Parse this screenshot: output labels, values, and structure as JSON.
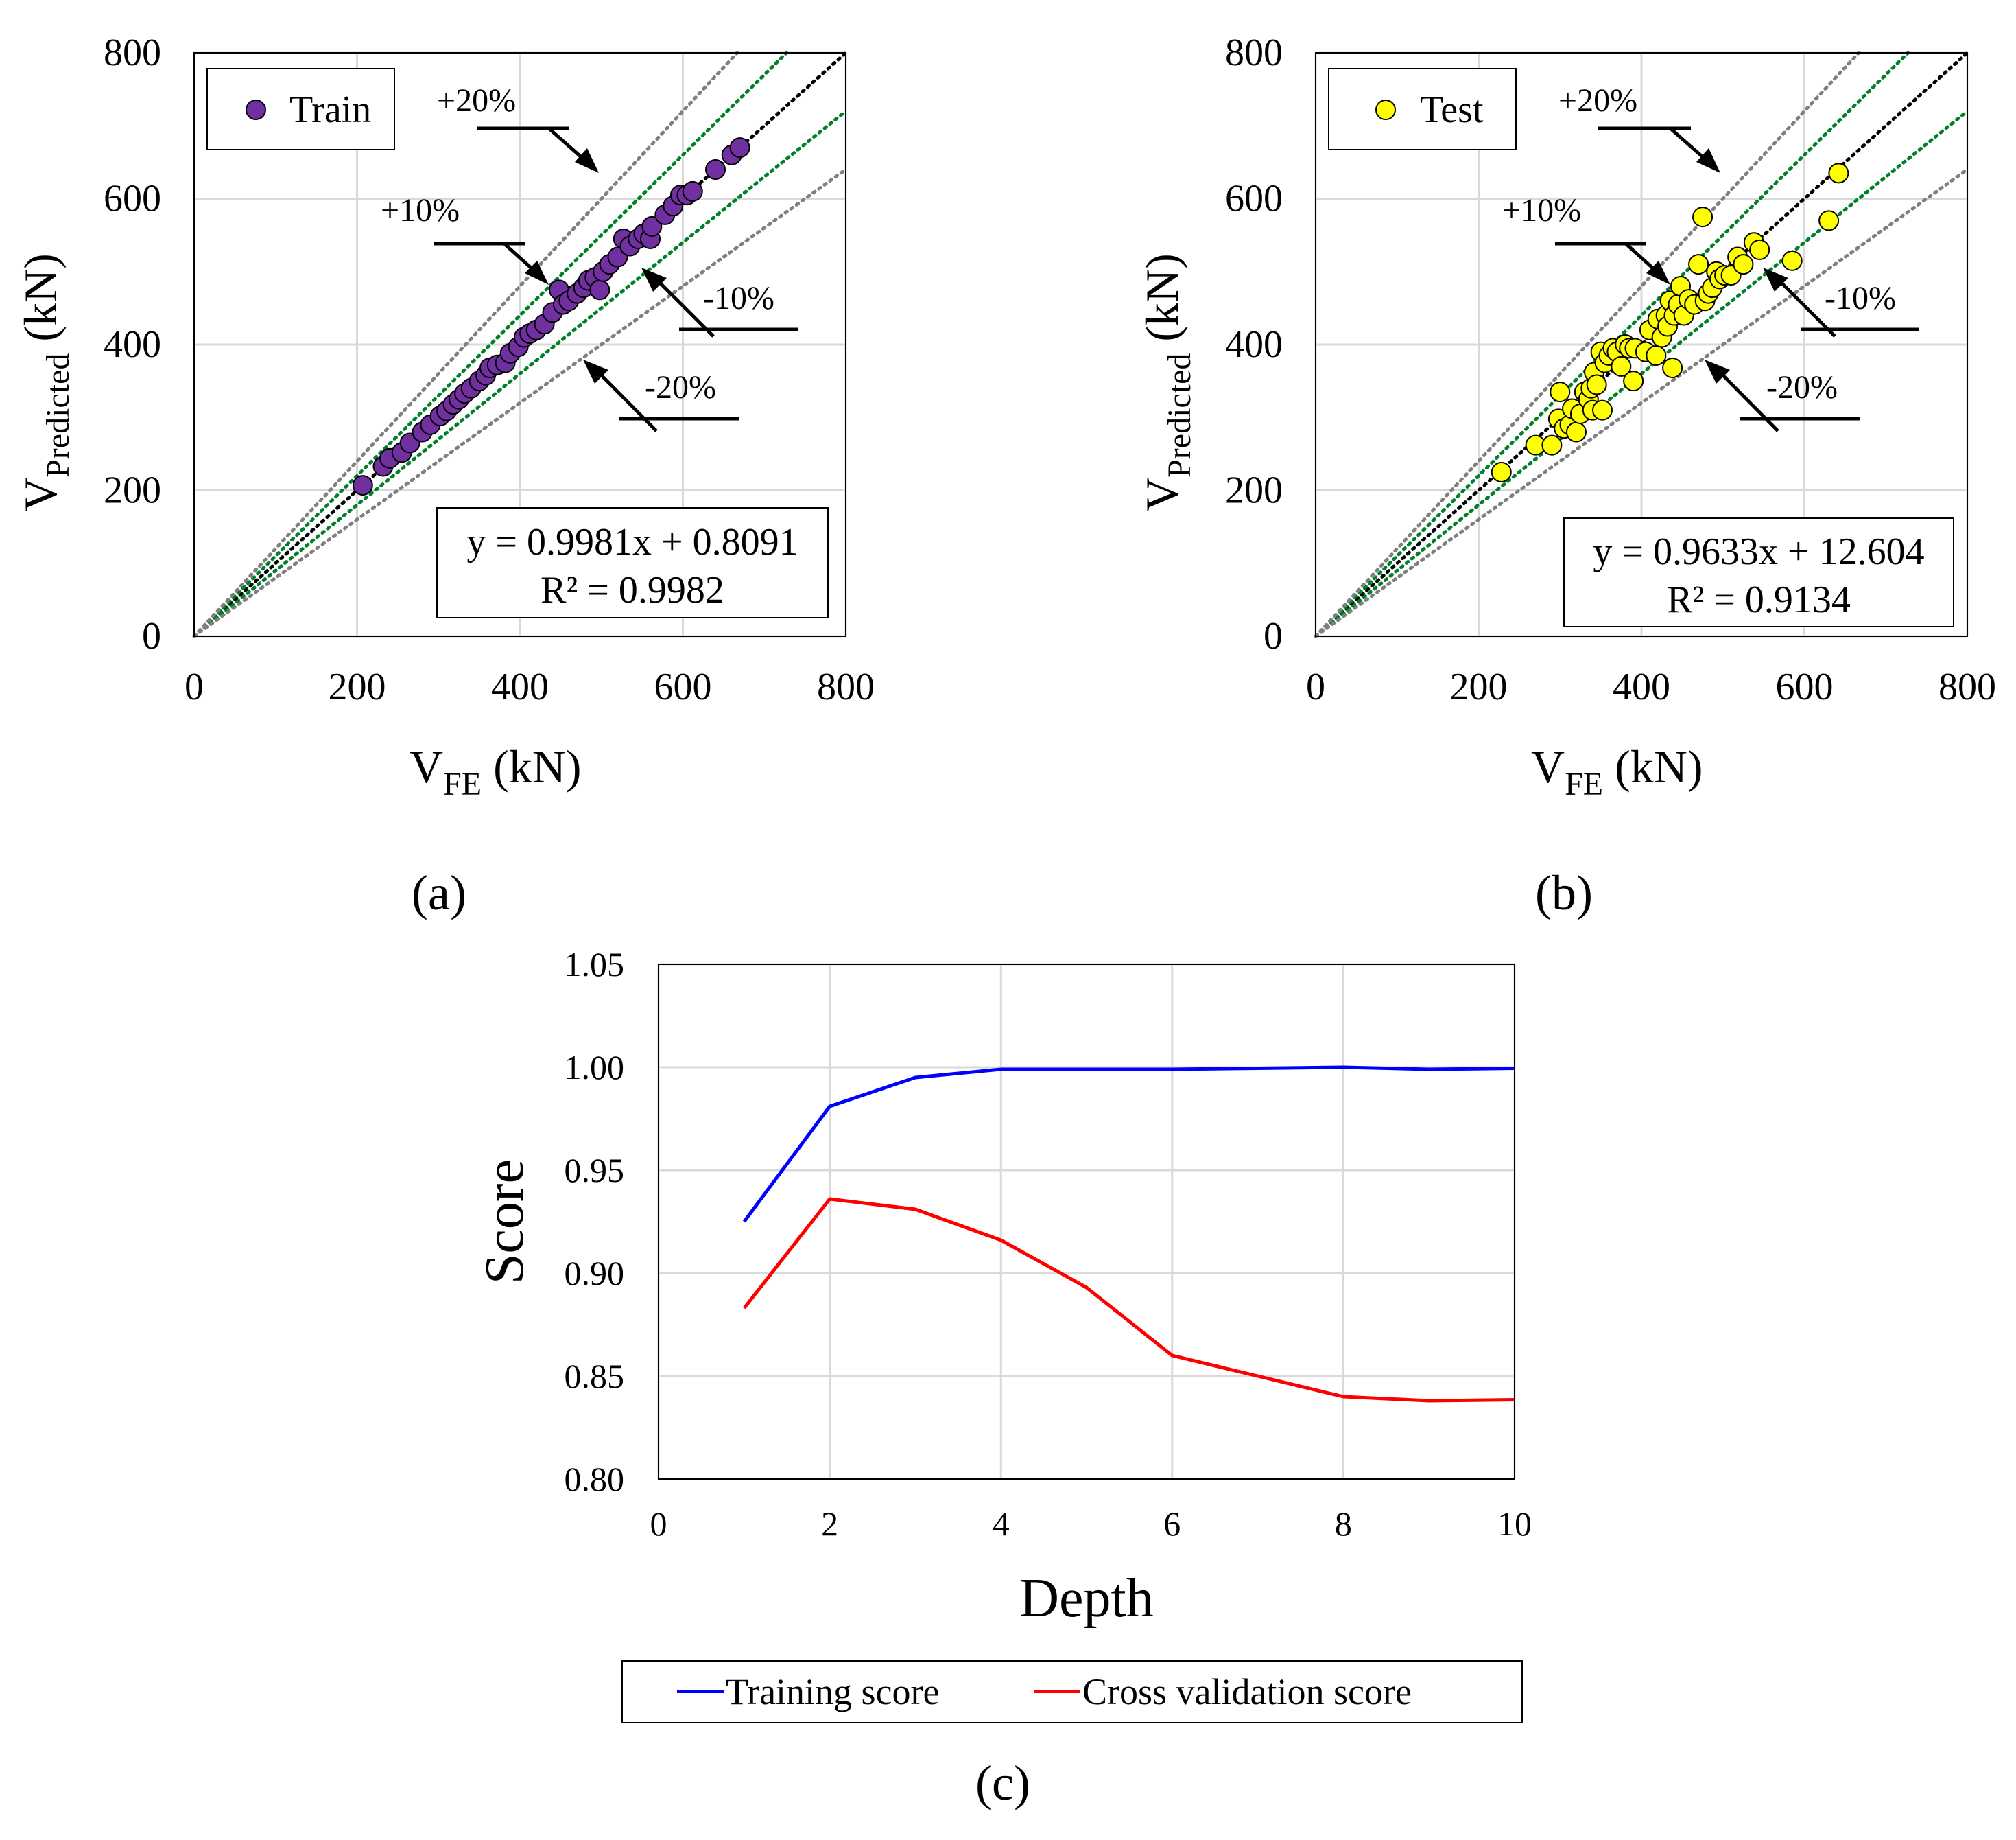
{
  "chart_data": [
    {
      "type": "scatter",
      "panel_label": "(a)",
      "xlabel": {
        "main": "V",
        "sub": "FE",
        "unit": " (kN)"
      },
      "ylabel": {
        "main": "V",
        "sub": "Predicted",
        "unit": " (kN)"
      },
      "xlim": [
        0,
        800
      ],
      "ylim": [
        0,
        800
      ],
      "xticks": [
        "0",
        "200",
        "400",
        "600",
        "800"
      ],
      "yticks": [
        "0",
        "200",
        "400",
        "600",
        "800"
      ],
      "grid": true,
      "legend": {
        "label": "Train",
        "position": "top-left"
      },
      "marker_color": "#7030a0",
      "equation": "y = 0.9981x + 0.8091",
      "r_squared": "R² = 0.9982",
      "reference_lines": [
        {
          "slope": 1.0,
          "color": "#000000"
        },
        {
          "slope": 1.1,
          "color": "#00802b"
        },
        {
          "slope": 0.9,
          "color": "#00802b"
        },
        {
          "slope": 1.2,
          "color": "#808080"
        },
        {
          "slope": 0.8,
          "color": "#808080"
        }
      ],
      "annotations": [
        "+20%",
        "+10%",
        "-10%",
        "-20%"
      ],
      "points": [
        [
          207,
          207
        ],
        [
          232,
          233
        ],
        [
          240,
          244
        ],
        [
          255,
          252
        ],
        [
          265,
          265
        ],
        [
          280,
          280
        ],
        [
          290,
          290
        ],
        [
          302,
          302
        ],
        [
          310,
          309
        ],
        [
          318,
          318
        ],
        [
          325,
          325
        ],
        [
          332,
          333
        ],
        [
          340,
          340
        ],
        [
          350,
          350
        ],
        [
          358,
          358
        ],
        [
          363,
          368
        ],
        [
          372,
          372
        ],
        [
          382,
          375
        ],
        [
          388,
          388
        ],
        [
          398,
          397
        ],
        [
          405,
          410
        ],
        [
          412,
          415
        ],
        [
          420,
          420
        ],
        [
          430,
          428
        ],
        [
          440,
          444
        ],
        [
          448,
          475
        ],
        [
          453,
          455
        ],
        [
          460,
          460
        ],
        [
          470,
          470
        ],
        [
          478,
          478
        ],
        [
          484,
          488
        ],
        [
          492,
          492
        ],
        [
          498,
          475
        ],
        [
          502,
          500
        ],
        [
          510,
          510
        ],
        [
          520,
          520
        ],
        [
          527,
          545
        ],
        [
          535,
          535
        ],
        [
          545,
          545
        ],
        [
          552,
          552
        ],
        [
          560,
          545
        ],
        [
          562,
          562
        ],
        [
          578,
          578
        ],
        [
          588,
          590
        ],
        [
          597,
          605
        ],
        [
          605,
          605
        ],
        [
          612,
          610
        ],
        [
          640,
          640
        ],
        [
          660,
          660
        ],
        [
          670,
          670
        ]
      ]
    },
    {
      "type": "scatter",
      "panel_label": "(b)",
      "xlabel": {
        "main": "V",
        "sub": "FE",
        "unit": " (kN)"
      },
      "ylabel": {
        "main": "V",
        "sub": "Predicted",
        "unit": " (kN)"
      },
      "xlim": [
        0,
        800
      ],
      "ylim": [
        0,
        800
      ],
      "xticks": [
        "0",
        "200",
        "400",
        "600",
        "800"
      ],
      "yticks": [
        "0",
        "200",
        "400",
        "600",
        "800"
      ],
      "grid": true,
      "legend": {
        "label": "Test",
        "position": "top-left"
      },
      "marker_color": "#ffff00",
      "equation": "y = 0.9633x + 12.604",
      "r_squared": "R² = 0.9134",
      "reference_lines": [
        {
          "slope": 1.0,
          "color": "#000000"
        },
        {
          "slope": 1.1,
          "color": "#00802b"
        },
        {
          "slope": 0.9,
          "color": "#00802b"
        },
        {
          "slope": 1.2,
          "color": "#808080"
        },
        {
          "slope": 0.8,
          "color": "#808080"
        }
      ],
      "annotations": [
        "+20%",
        "+10%",
        "-10%",
        "-20%"
      ],
      "points": [
        [
          228,
          225
        ],
        [
          270,
          262
        ],
        [
          290,
          262
        ],
        [
          298,
          298
        ],
        [
          300,
          335
        ],
        [
          305,
          285
        ],
        [
          312,
          290
        ],
        [
          315,
          312
        ],
        [
          320,
          280
        ],
        [
          325,
          305
        ],
        [
          330,
          335
        ],
        [
          335,
          325
        ],
        [
          338,
          340
        ],
        [
          340,
          310
        ],
        [
          342,
          362
        ],
        [
          345,
          345
        ],
        [
          350,
          390
        ],
        [
          352,
          310
        ],
        [
          355,
          375
        ],
        [
          360,
          385
        ],
        [
          365,
          395
        ],
        [
          370,
          390
        ],
        [
          375,
          370
        ],
        [
          380,
          400
        ],
        [
          385,
          395
        ],
        [
          390,
          350
        ],
        [
          392,
          395
        ],
        [
          405,
          390
        ],
        [
          410,
          420
        ],
        [
          418,
          385
        ],
        [
          420,
          435
        ],
        [
          425,
          410
        ],
        [
          430,
          440
        ],
        [
          432,
          425
        ],
        [
          435,
          460
        ],
        [
          438,
          368
        ],
        [
          440,
          440
        ],
        [
          445,
          455
        ],
        [
          448,
          480
        ],
        [
          452,
          440
        ],
        [
          458,
          462
        ],
        [
          465,
          455
        ],
        [
          470,
          510
        ],
        [
          475,
          575
        ],
        [
          478,
          460
        ],
        [
          482,
          470
        ],
        [
          487,
          478
        ],
        [
          492,
          500
        ],
        [
          496,
          490
        ],
        [
          502,
          495
        ],
        [
          510,
          495
        ],
        [
          518,
          520
        ],
        [
          525,
          510
        ],
        [
          538,
          540
        ],
        [
          545,
          530
        ],
        [
          585,
          515
        ],
        [
          630,
          570
        ],
        [
          642,
          635
        ]
      ]
    },
    {
      "type": "line",
      "panel_label": "(c)",
      "xlabel": "Depth",
      "ylabel": "Score",
      "xlim": [
        0,
        10
      ],
      "ylim": [
        0.8,
        1.05
      ],
      "xticks": [
        "0",
        "2",
        "4",
        "6",
        "8",
        "10"
      ],
      "yticks": [
        "0.80",
        "0.85",
        "0.90",
        "0.95",
        "1.00",
        "1.05"
      ],
      "grid": true,
      "legend_position": "bottom",
      "x": [
        1,
        2,
        3,
        4,
        5,
        6,
        7,
        8,
        9,
        10
      ],
      "series": [
        {
          "name": "Training score",
          "color": "#0000ff",
          "values": [
            0.925,
            0.981,
            0.995,
            0.999,
            0.999,
            0.999,
            0.9995,
            1.0,
            0.999,
            0.9995
          ]
        },
        {
          "name": "Cross validation score",
          "color": "#ff0000",
          "values": [
            0.883,
            0.936,
            0.931,
            0.916,
            0.893,
            0.86,
            0.85,
            0.84,
            0.838,
            0.8385
          ]
        }
      ]
    }
  ]
}
